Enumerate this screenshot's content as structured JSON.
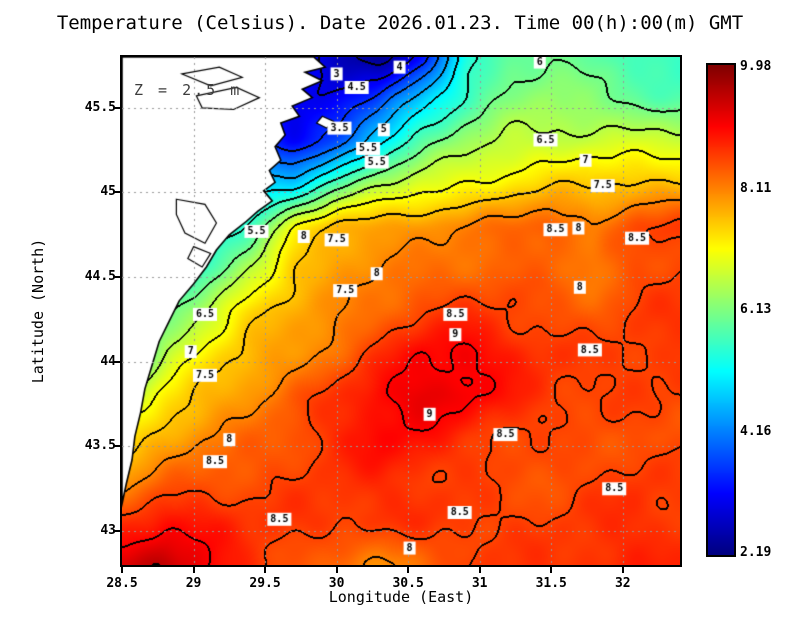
{
  "title": "Temperature (Celsius). Date 2026.01.23. Time 00(h):00(m) GMT",
  "annotation": "Z = 2.5 m",
  "axes": {
    "x": {
      "label": "Longitude (East)",
      "min": 28.5,
      "max": 32.4,
      "ticks": [
        {
          "v": 28.5,
          "label": "28.5"
        },
        {
          "v": 29,
          "label": "29"
        },
        {
          "v": 29.5,
          "label": "29.5"
        },
        {
          "v": 30,
          "label": "30"
        },
        {
          "v": 30.5,
          "label": "30.5"
        },
        {
          "v": 31,
          "label": "31"
        },
        {
          "v": 31.5,
          "label": "31.5"
        },
        {
          "v": 32,
          "label": "32"
        }
      ]
    },
    "y": {
      "label": "Latitude (North)",
      "min": 42.8,
      "max": 45.8,
      "ticks": [
        {
          "v": 45.5,
          "label": "45.5"
        },
        {
          "v": 45,
          "label": "45"
        },
        {
          "v": 44.5,
          "label": "44.5"
        },
        {
          "v": 44,
          "label": "44"
        },
        {
          "v": 43.5,
          "label": "43.5"
        },
        {
          "v": 43,
          "label": "43"
        }
      ]
    }
  },
  "colorbar": {
    "min": 2.19,
    "max": 9.98,
    "tick_labels": [
      "9.98",
      "8.11",
      "6.13",
      "4.16",
      "2.19"
    ],
    "stops": [
      {
        "p": 0.0,
        "c": "#000080"
      },
      {
        "p": 0.125,
        "c": "#0000FF"
      },
      {
        "p": 0.375,
        "c": "#00FFFF"
      },
      {
        "p": 0.625,
        "c": "#FFFF00"
      },
      {
        "p": 0.875,
        "c": "#FF0000"
      },
      {
        "p": 1.0,
        "c": "#800000"
      }
    ]
  },
  "colors": {
    "land": "#FFFFFF",
    "coastline": "#000000",
    "grid": "#999999",
    "contour": "#000000"
  },
  "chart_data": {
    "type": "heatmap",
    "title": "Temperature (Celsius). Date 2026.01.23. Time 00(h):00(m) GMT",
    "xlabel": "Longitude (East)",
    "ylabel": "Latitude (North)",
    "xlim": [
      28.5,
      32.4
    ],
    "ylim": [
      42.8,
      45.8
    ],
    "units": "Celsius",
    "depth": "2.5 m",
    "grid_on": true,
    "contour_interval": 0.5,
    "lons": [
      28.5,
      28.8,
      29.1,
      29.4,
      29.7,
      30.0,
      30.3,
      30.6,
      30.9,
      31.2,
      31.5,
      31.8,
      32.1,
      32.4
    ],
    "lats": [
      45.8,
      45.55,
      45.3,
      45.05,
      44.8,
      44.55,
      44.3,
      44.05,
      43.8,
      43.55,
      43.3,
      43.05,
      42.8
    ],
    "values": [
      [
        5.0,
        5.0,
        5.0,
        4.5,
        3.5,
        2.6,
        2.2,
        3.2,
        5.2,
        5.9,
        6.0,
        5.8,
        5.6,
        5.5
      ],
      [
        5.0,
        5.0,
        5.0,
        4.2,
        3.0,
        3.2,
        3.6,
        4.8,
        5.6,
        6.1,
        6.3,
        6.1,
        5.9,
        5.7
      ],
      [
        5.0,
        5.0,
        5.0,
        4.0,
        3.0,
        3.6,
        5.0,
        5.8,
        6.3,
        6.6,
        6.6,
        6.7,
        6.7,
        6.7
      ],
      [
        5.5,
        5.5,
        5.2,
        4.6,
        4.8,
        5.8,
        6.4,
        6.8,
        7.0,
        7.2,
        7.4,
        7.5,
        7.6,
        7.5
      ],
      [
        5.0,
        5.0,
        5.2,
        5.6,
        7.0,
        7.7,
        7.8,
        7.9,
        8.0,
        8.2,
        8.45,
        7.95,
        8.5,
        8.6
      ],
      [
        4.8,
        5.0,
        5.5,
        6.5,
        7.5,
        7.8,
        8.0,
        8.1,
        8.2,
        8.3,
        8.2,
        8.05,
        8.4,
        8.5
      ],
      [
        4.8,
        5.8,
        6.6,
        7.4,
        7.7,
        7.9,
        8.2,
        8.5,
        8.6,
        8.5,
        8.4,
        8.3,
        8.5,
        8.6
      ],
      [
        5.2,
        6.5,
        7.2,
        7.6,
        7.8,
        8.2,
        8.6,
        9.0,
        9.1,
        8.8,
        8.6,
        8.5,
        8.6,
        8.6
      ],
      [
        6.2,
        7.2,
        7.6,
        7.9,
        8.3,
        8.6,
        9.0,
        9.2,
        9.1,
        8.8,
        8.6,
        8.5,
        8.5,
        8.5
      ],
      [
        7.2,
        7.7,
        8.0,
        8.2,
        8.4,
        8.7,
        9.0,
        8.9,
        8.6,
        8.5,
        8.4,
        8.4,
        8.4,
        8.4
      ],
      [
        7.8,
        8.2,
        8.4,
        8.4,
        8.5,
        8.6,
        8.7,
        8.6,
        8.5,
        8.4,
        8.4,
        8.5,
        8.6,
        8.5
      ],
      [
        8.6,
        9.0,
        8.8,
        8.6,
        8.6,
        8.6,
        8.6,
        8.6,
        8.6,
        8.5,
        8.5,
        8.6,
        8.7,
        8.6
      ],
      [
        9.3,
        9.5,
        9.0,
        8.7,
        8.4,
        8.1,
        7.9,
        8.2,
        8.5,
        8.6,
        8.6,
        8.7,
        8.7,
        8.7
      ]
    ],
    "contour_labels": [
      {
        "t": "3",
        "lon": 30.0,
        "lat": 45.7
      },
      {
        "t": "4",
        "lon": 30.44,
        "lat": 45.74
      },
      {
        "t": "4.5",
        "lon": 30.14,
        "lat": 45.62
      },
      {
        "t": "3.5",
        "lon": 30.02,
        "lat": 45.38
      },
      {
        "t": "5",
        "lon": 30.33,
        "lat": 45.37
      },
      {
        "t": "5.5",
        "lon": 30.22,
        "lat": 45.26
      },
      {
        "t": "5.5",
        "lon": 30.28,
        "lat": 45.18
      },
      {
        "t": "6",
        "lon": 31.42,
        "lat": 45.77
      },
      {
        "t": "6.5",
        "lon": 31.46,
        "lat": 45.31
      },
      {
        "t": "7",
        "lon": 31.74,
        "lat": 45.19
      },
      {
        "t": "7.5",
        "lon": 31.86,
        "lat": 45.04
      },
      {
        "t": "5.5",
        "lon": 29.44,
        "lat": 44.77
      },
      {
        "t": "8",
        "lon": 29.77,
        "lat": 44.74
      },
      {
        "t": "7.5",
        "lon": 30.0,
        "lat": 44.72
      },
      {
        "t": "8.5",
        "lon": 31.53,
        "lat": 44.78
      },
      {
        "t": "8",
        "lon": 31.69,
        "lat": 44.79
      },
      {
        "t": "8.5",
        "lon": 32.1,
        "lat": 44.73
      },
      {
        "t": "8",
        "lon": 30.28,
        "lat": 44.52
      },
      {
        "t": "7.5",
        "lon": 30.06,
        "lat": 44.42
      },
      {
        "t": "8",
        "lon": 31.7,
        "lat": 44.44
      },
      {
        "t": "6.5",
        "lon": 29.08,
        "lat": 44.28
      },
      {
        "t": "8.5",
        "lon": 30.83,
        "lat": 44.28
      },
      {
        "t": "9",
        "lon": 30.83,
        "lat": 44.16
      },
      {
        "t": "7",
        "lon": 28.98,
        "lat": 44.06
      },
      {
        "t": "8.5",
        "lon": 31.77,
        "lat": 44.07
      },
      {
        "t": "7.5",
        "lon": 29.08,
        "lat": 43.92
      },
      {
        "t": "9",
        "lon": 30.65,
        "lat": 43.69
      },
      {
        "t": "8.5",
        "lon": 31.18,
        "lat": 43.57
      },
      {
        "t": "8",
        "lon": 29.25,
        "lat": 43.54
      },
      {
        "t": "8.5",
        "lon": 29.15,
        "lat": 43.41
      },
      {
        "t": "8.5",
        "lon": 31.94,
        "lat": 43.25
      },
      {
        "t": "8.5",
        "lon": 29.6,
        "lat": 43.07
      },
      {
        "t": "8.5",
        "lon": 30.86,
        "lat": 43.11
      },
      {
        "t": "8",
        "lon": 30.51,
        "lat": 42.9
      }
    ],
    "land": [
      [
        [
          28.5,
          45.8
        ],
        [
          29.84,
          45.8
        ],
        [
          29.92,
          45.74
        ],
        [
          29.78,
          45.71
        ],
        [
          29.9,
          45.66
        ],
        [
          29.76,
          45.61
        ],
        [
          29.83,
          45.56
        ],
        [
          29.69,
          45.51
        ],
        [
          29.74,
          45.45
        ],
        [
          29.61,
          45.41
        ],
        [
          29.64,
          45.34
        ],
        [
          29.57,
          45.27
        ],
        [
          29.61,
          45.19
        ],
        [
          29.53,
          45.13
        ],
        [
          29.57,
          45.06
        ],
        [
          29.49,
          45.01
        ],
        [
          29.55,
          44.95
        ],
        [
          29.45,
          44.89
        ],
        [
          29.37,
          44.83
        ],
        [
          29.25,
          44.75
        ],
        [
          29.16,
          44.66
        ],
        [
          29.09,
          44.56
        ],
        [
          29.0,
          44.46
        ],
        [
          28.9,
          44.36
        ],
        [
          28.83,
          44.24
        ],
        [
          28.76,
          44.12
        ],
        [
          28.71,
          43.98
        ],
        [
          28.66,
          43.84
        ],
        [
          28.63,
          43.7
        ],
        [
          28.59,
          43.56
        ],
        [
          28.57,
          43.42
        ],
        [
          28.53,
          43.28
        ],
        [
          28.5,
          43.16
        ]
      ]
    ],
    "islands": [
      [
        [
          29.9,
          45.45
        ],
        [
          29.98,
          45.42
        ],
        [
          29.93,
          45.38
        ],
        [
          29.86,
          45.41
        ]
      ]
    ],
    "lakes": [
      [
        [
          28.88,
          44.96
        ],
        [
          29.08,
          44.93
        ],
        [
          29.16,
          44.82
        ],
        [
          29.08,
          44.7
        ],
        [
          28.94,
          44.76
        ],
        [
          28.88,
          44.87
        ]
      ],
      [
        [
          29.0,
          44.68
        ],
        [
          29.12,
          44.64
        ],
        [
          29.06,
          44.56
        ],
        [
          28.96,
          44.61
        ]
      ],
      [
        [
          28.92,
          45.7
        ],
        [
          29.18,
          45.74
        ],
        [
          29.34,
          45.68
        ],
        [
          29.12,
          45.63
        ]
      ],
      [
        [
          29.02,
          45.57
        ],
        [
          29.3,
          45.62
        ],
        [
          29.46,
          45.56
        ],
        [
          29.28,
          45.49
        ],
        [
          29.06,
          45.5
        ]
      ]
    ]
  }
}
